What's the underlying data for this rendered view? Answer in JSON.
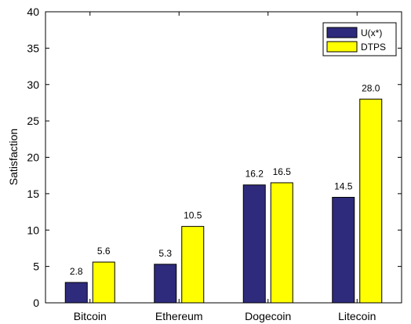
{
  "chart_data": {
    "type": "bar",
    "title": "",
    "xlabel": "",
    "ylabel": "Satisfaction",
    "categories": [
      "Bitcoin",
      "Ethereum",
      "Dogecoin",
      "Litecoin"
    ],
    "series": [
      {
        "name": "U(x*)",
        "values": [
          2.8,
          5.3,
          16.2,
          14.5
        ],
        "color": "#2e2a7c"
      },
      {
        "name": "DTPS",
        "values": [
          5.6,
          10.5,
          16.5,
          28.0
        ],
        "color": "#ffff00"
      }
    ],
    "ylim": [
      0,
      40
    ],
    "yticks": [
      0,
      5,
      10,
      15,
      20,
      25,
      30,
      35,
      40
    ],
    "grid": false,
    "legend_position": "top-right",
    "data_labels": true
  }
}
